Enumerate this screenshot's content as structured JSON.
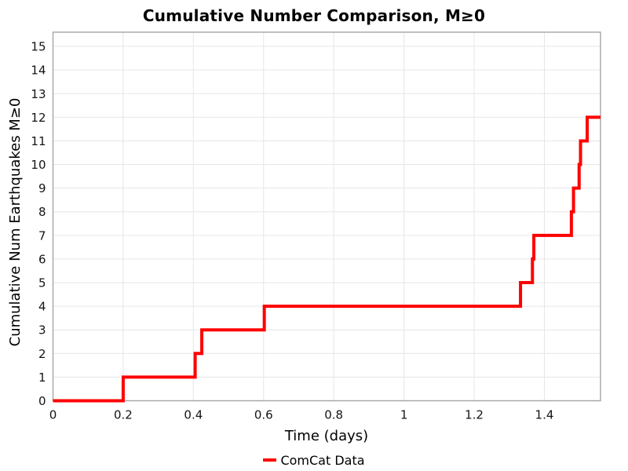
{
  "chart_data": {
    "type": "line",
    "subtype": "step-post",
    "title": "Cumulative Number Comparison, M≥0",
    "xlabel": "Time (days)",
    "ylabel": "Cumulative Num Earthquakes M≥0",
    "xlim": [
      0,
      1.56
    ],
    "ylim": [
      0,
      15.6
    ],
    "grid": true,
    "grid_color": "#e6e6e6",
    "border_color": "#a6a6a6",
    "background_color": "#ffffff",
    "xticks": {
      "values": [
        0,
        0.2,
        0.4,
        0.6,
        0.8,
        1,
        1.2,
        1.4
      ],
      "labels": [
        "0",
        "0.2",
        "0.4",
        "0.6",
        "0.8",
        "1",
        "1.2",
        "1.4"
      ]
    },
    "yticks": {
      "values": [
        0,
        1,
        2,
        3,
        4,
        5,
        6,
        7,
        8,
        9,
        10,
        11,
        12,
        13,
        14,
        15
      ],
      "labels": [
        "0",
        "1",
        "2",
        "3",
        "4",
        "5",
        "6",
        "7",
        "8",
        "9",
        "10",
        "11",
        "12",
        "13",
        "14",
        "15"
      ]
    },
    "series": [
      {
        "name": "ComCat Data",
        "color": "#ff0000",
        "line_width": 4,
        "start_x": 0,
        "start_count": 0,
        "end_x": 1.56,
        "event_times": [
          0.2,
          0.405,
          0.424,
          0.602,
          1.332,
          1.366,
          1.37,
          1.477,
          1.483,
          1.499,
          1.503,
          1.522
        ],
        "cumulative_counts": [
          1,
          2,
          3,
          4,
          5,
          6,
          7,
          8,
          9,
          10,
          11,
          12
        ]
      }
    ],
    "legend": {
      "position": "bottom-center",
      "entries": [
        {
          "label": "ComCat Data",
          "color": "#ff0000"
        }
      ]
    }
  }
}
